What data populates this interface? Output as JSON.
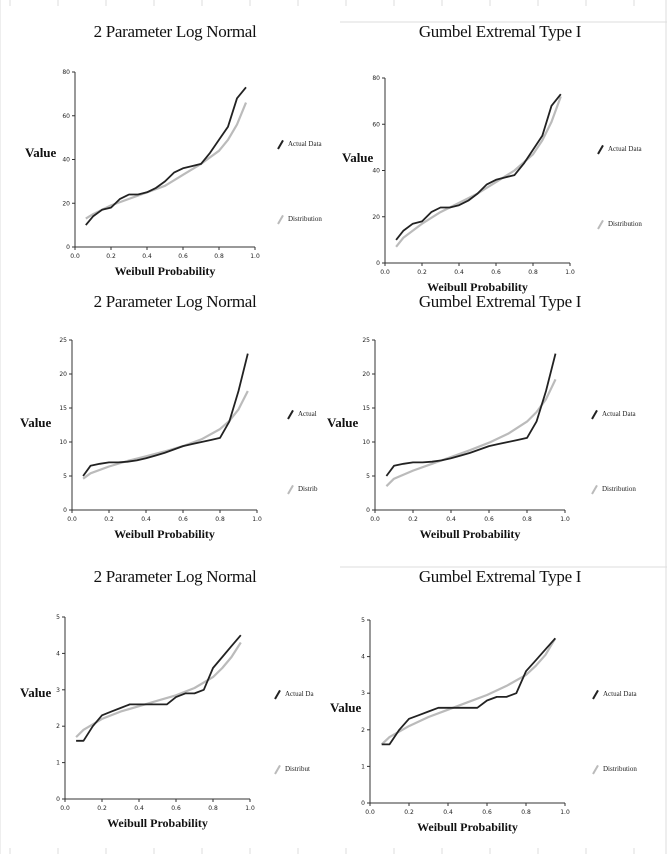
{
  "chart_data": [
    {
      "type": "line",
      "title": "2 Parameter Log Normal",
      "xlabel": "Weibull Probability",
      "ylabel": "Value",
      "xlim": [
        0,
        1
      ],
      "ylim": [
        0,
        80
      ],
      "xticks": [
        "0.0",
        "0.2",
        "0.4",
        "0.6",
        "0.8",
        "1.0"
      ],
      "yticks": [
        "0",
        "20",
        "40",
        "60",
        "80"
      ],
      "legend": [
        "Actual Data",
        "Distribution"
      ],
      "series": [
        {
          "name": "Actual Data",
          "x": [
            0.06,
            0.1,
            0.15,
            0.2,
            0.25,
            0.3,
            0.35,
            0.4,
            0.45,
            0.5,
            0.55,
            0.6,
            0.65,
            0.7,
            0.75,
            0.8,
            0.85,
            0.9,
            0.95
          ],
          "y": [
            10,
            14,
            17,
            18,
            22,
            24,
            24,
            25,
            27,
            30,
            34,
            36,
            37,
            38,
            43,
            49,
            55,
            68,
            73
          ],
          "color": "#222222"
        },
        {
          "name": "Distribution",
          "x": [
            0.06,
            0.1,
            0.2,
            0.3,
            0.4,
            0.5,
            0.6,
            0.7,
            0.8,
            0.85,
            0.9,
            0.95
          ],
          "y": [
            13,
            15,
            19,
            22,
            25,
            28,
            33,
            38,
            44,
            49,
            56,
            66
          ],
          "color": "#bbbbbb"
        }
      ]
    },
    {
      "type": "line",
      "title": "Gumbel Extremal Type I",
      "xlabel": "Weibull Probability",
      "ylabel": "Value",
      "xlim": [
        0,
        1
      ],
      "ylim": [
        0,
        80
      ],
      "xticks": [
        "0.0",
        "0.2",
        "0.4",
        "0.6",
        "0.8",
        "1.0"
      ],
      "yticks": [
        "0",
        "20",
        "40",
        "60",
        "80"
      ],
      "legend": [
        "Actual Data",
        "Distribution"
      ],
      "series": [
        {
          "name": "Actual Data",
          "x": [
            0.06,
            0.1,
            0.15,
            0.2,
            0.25,
            0.3,
            0.35,
            0.4,
            0.45,
            0.5,
            0.55,
            0.6,
            0.65,
            0.7,
            0.75,
            0.8,
            0.85,
            0.9,
            0.95
          ],
          "y": [
            10,
            14,
            17,
            18,
            22,
            24,
            24,
            25,
            27,
            30,
            34,
            36,
            37,
            38,
            43,
            49,
            55,
            68,
            73
          ],
          "color": "#222222"
        },
        {
          "name": "Distribution",
          "x": [
            0.06,
            0.1,
            0.2,
            0.3,
            0.4,
            0.5,
            0.6,
            0.7,
            0.8,
            0.85,
            0.9,
            0.95
          ],
          "y": [
            7,
            11,
            17,
            22,
            26,
            30,
            35,
            40,
            47,
            53,
            61,
            72
          ],
          "color": "#bbbbbb"
        }
      ]
    },
    {
      "type": "line",
      "title": "2 Parameter Log Normal",
      "xlabel": "Weibull Probability",
      "ylabel": "Value",
      "xlim": [
        0,
        1
      ],
      "ylim": [
        0,
        25
      ],
      "xticks": [
        "0.0",
        "0.2",
        "0.4",
        "0.6",
        "0.8",
        "1.0"
      ],
      "yticks": [
        "0",
        "5",
        "10",
        "15",
        "20",
        "25"
      ],
      "legend": [
        "Actual",
        "Distrib"
      ],
      "series": [
        {
          "name": "Actual",
          "x": [
            0.06,
            0.1,
            0.15,
            0.2,
            0.25,
            0.3,
            0.35,
            0.4,
            0.45,
            0.5,
            0.55,
            0.6,
            0.65,
            0.7,
            0.75,
            0.8,
            0.85,
            0.9,
            0.95
          ],
          "y": [
            5,
            6.5,
            6.8,
            7,
            7,
            7.1,
            7.3,
            7.6,
            8,
            8.4,
            8.9,
            9.4,
            9.7,
            10,
            10.3,
            10.6,
            13,
            17.5,
            23
          ],
          "color": "#222222"
        },
        {
          "name": "Distrib",
          "x": [
            0.06,
            0.1,
            0.2,
            0.3,
            0.4,
            0.5,
            0.6,
            0.7,
            0.8,
            0.85,
            0.9,
            0.95
          ],
          "y": [
            4.6,
            5.4,
            6.4,
            7.2,
            7.9,
            8.6,
            9.4,
            10.4,
            11.9,
            13.1,
            14.8,
            17.5
          ],
          "color": "#bbbbbb"
        }
      ]
    },
    {
      "type": "line",
      "title": "Gumbel Extremal Type I",
      "xlabel": "Weibull Probability",
      "ylabel": "Value",
      "xlim": [
        0,
        1
      ],
      "ylim": [
        0,
        25
      ],
      "xticks": [
        "0.0",
        "0.2",
        "0.4",
        "0.6",
        "0.8",
        "1.0"
      ],
      "yticks": [
        "0",
        "5",
        "10",
        "15",
        "20",
        "25"
      ],
      "legend": [
        "Actual Data",
        "Distribution"
      ],
      "series": [
        {
          "name": "Actual Data",
          "x": [
            0.06,
            0.1,
            0.15,
            0.2,
            0.25,
            0.3,
            0.35,
            0.4,
            0.45,
            0.5,
            0.55,
            0.6,
            0.65,
            0.7,
            0.75,
            0.8,
            0.85,
            0.9,
            0.95
          ],
          "y": [
            5,
            6.5,
            6.8,
            7,
            7,
            7.1,
            7.3,
            7.6,
            8,
            8.4,
            8.9,
            9.4,
            9.7,
            10,
            10.3,
            10.6,
            13,
            17.5,
            23
          ],
          "color": "#222222"
        },
        {
          "name": "Distribution",
          "x": [
            0.06,
            0.1,
            0.2,
            0.3,
            0.4,
            0.5,
            0.6,
            0.7,
            0.8,
            0.85,
            0.9,
            0.95
          ],
          "y": [
            3.5,
            4.6,
            5.8,
            6.8,
            7.8,
            8.8,
            9.9,
            11.2,
            13,
            14.4,
            16.3,
            19.2
          ],
          "color": "#bbbbbb"
        }
      ]
    },
    {
      "type": "line",
      "title": "2 Parameter Log Normal",
      "xlabel": "Weibull Probability",
      "ylabel": "Value",
      "xlim": [
        0,
        1
      ],
      "ylim": [
        0,
        5
      ],
      "xticks": [
        "0.0",
        "0.2",
        "0.4",
        "0.6",
        "0.8",
        "1.0"
      ],
      "yticks": [
        "0",
        "1",
        "2",
        "3",
        "4",
        "5"
      ],
      "legend": [
        "Actual Da",
        "Distribut"
      ],
      "series": [
        {
          "name": "Actual Da",
          "x": [
            0.06,
            0.1,
            0.15,
            0.2,
            0.25,
            0.3,
            0.35,
            0.4,
            0.45,
            0.5,
            0.55,
            0.6,
            0.65,
            0.7,
            0.75,
            0.8,
            0.85,
            0.9,
            0.95
          ],
          "y": [
            1.6,
            1.6,
            2,
            2.3,
            2.4,
            2.5,
            2.6,
            2.6,
            2.6,
            2.6,
            2.6,
            2.8,
            2.9,
            2.9,
            3,
            3.6,
            3.9,
            4.2,
            4.5
          ],
          "color": "#222222"
        },
        {
          "name": "Distribut",
          "x": [
            0.06,
            0.1,
            0.2,
            0.3,
            0.4,
            0.5,
            0.6,
            0.7,
            0.8,
            0.85,
            0.9,
            0.95
          ],
          "y": [
            1.7,
            1.9,
            2.2,
            2.4,
            2.55,
            2.7,
            2.85,
            3.05,
            3.35,
            3.6,
            3.9,
            4.3
          ],
          "color": "#bbbbbb"
        }
      ]
    },
    {
      "type": "line",
      "title": "Gumbel Extremal Type I",
      "xlabel": "Weibull Probability",
      "ylabel": "Value",
      "xlim": [
        0,
        1
      ],
      "ylim": [
        0,
        5
      ],
      "xticks": [
        "0.0",
        "0.2",
        "0.4",
        "0.6",
        "0.8",
        "1.0"
      ],
      "yticks": [
        "0",
        "1",
        "2",
        "3",
        "4",
        "5"
      ],
      "legend": [
        "Actual Data",
        "Distribution"
      ],
      "series": [
        {
          "name": "Actual Data",
          "x": [
            0.06,
            0.1,
            0.15,
            0.2,
            0.25,
            0.3,
            0.35,
            0.4,
            0.45,
            0.5,
            0.55,
            0.6,
            0.65,
            0.7,
            0.75,
            0.8,
            0.85,
            0.9,
            0.95
          ],
          "y": [
            1.6,
            1.6,
            2,
            2.3,
            2.4,
            2.5,
            2.6,
            2.6,
            2.6,
            2.6,
            2.6,
            2.8,
            2.9,
            2.9,
            3,
            3.6,
            3.9,
            4.2,
            4.5
          ],
          "color": "#222222"
        },
        {
          "name": "Distribution",
          "x": [
            0.06,
            0.1,
            0.2,
            0.3,
            0.4,
            0.5,
            0.6,
            0.7,
            0.8,
            0.85,
            0.9,
            0.95
          ],
          "y": [
            1.6,
            1.8,
            2.1,
            2.35,
            2.55,
            2.75,
            2.95,
            3.2,
            3.5,
            3.75,
            4.05,
            4.5
          ],
          "color": "#bbbbbb"
        }
      ]
    }
  ]
}
